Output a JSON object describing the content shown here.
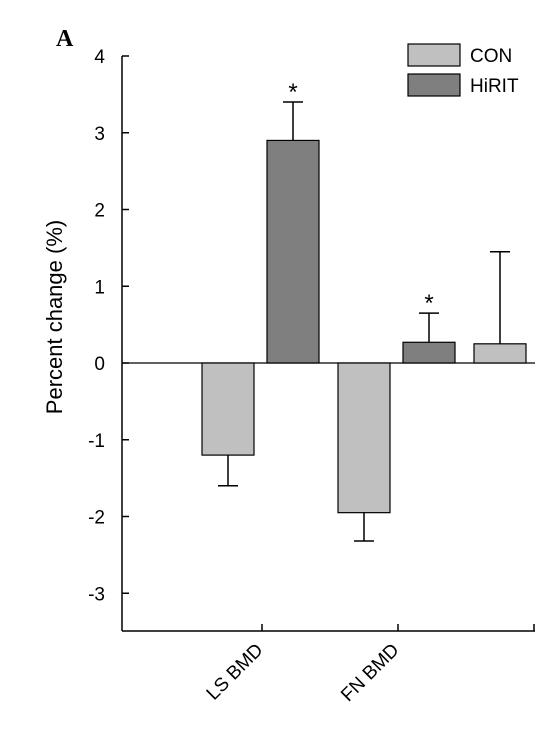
{
  "panel_label": "A",
  "colors": {
    "CON": "#c0c0c0",
    "HiRIT": "#7f7f7f",
    "axis": "#000000",
    "stroke": "#000000"
  },
  "chart_data": {
    "type": "bar",
    "ylabel": "Percent change (%)",
    "xlabel": "",
    "ylim": [
      -3.5,
      4
    ],
    "yticks": [
      "4",
      "3",
      "2",
      "1",
      "0",
      "-1",
      "-2",
      "-3"
    ],
    "ytick_values": [
      4,
      3,
      2,
      1,
      0,
      -1,
      -2,
      -3
    ],
    "categories": [
      "LS BMD",
      "FN BMD",
      ""
    ],
    "legend": {
      "position": "top-right",
      "entries": [
        "CON",
        "HiRIT"
      ]
    },
    "series": [
      {
        "name": "CON",
        "values": [
          -1.2,
          -1.95,
          0.25
        ],
        "errors": [
          0.4,
          0.37,
          1.2
        ],
        "significance": [
          "",
          "",
          ""
        ]
      },
      {
        "name": "HiRIT",
        "values": [
          2.9,
          0.27,
          null
        ],
        "errors": [
          0.5,
          0.38,
          null
        ],
        "significance": [
          "*",
          "*",
          ""
        ]
      }
    ]
  }
}
